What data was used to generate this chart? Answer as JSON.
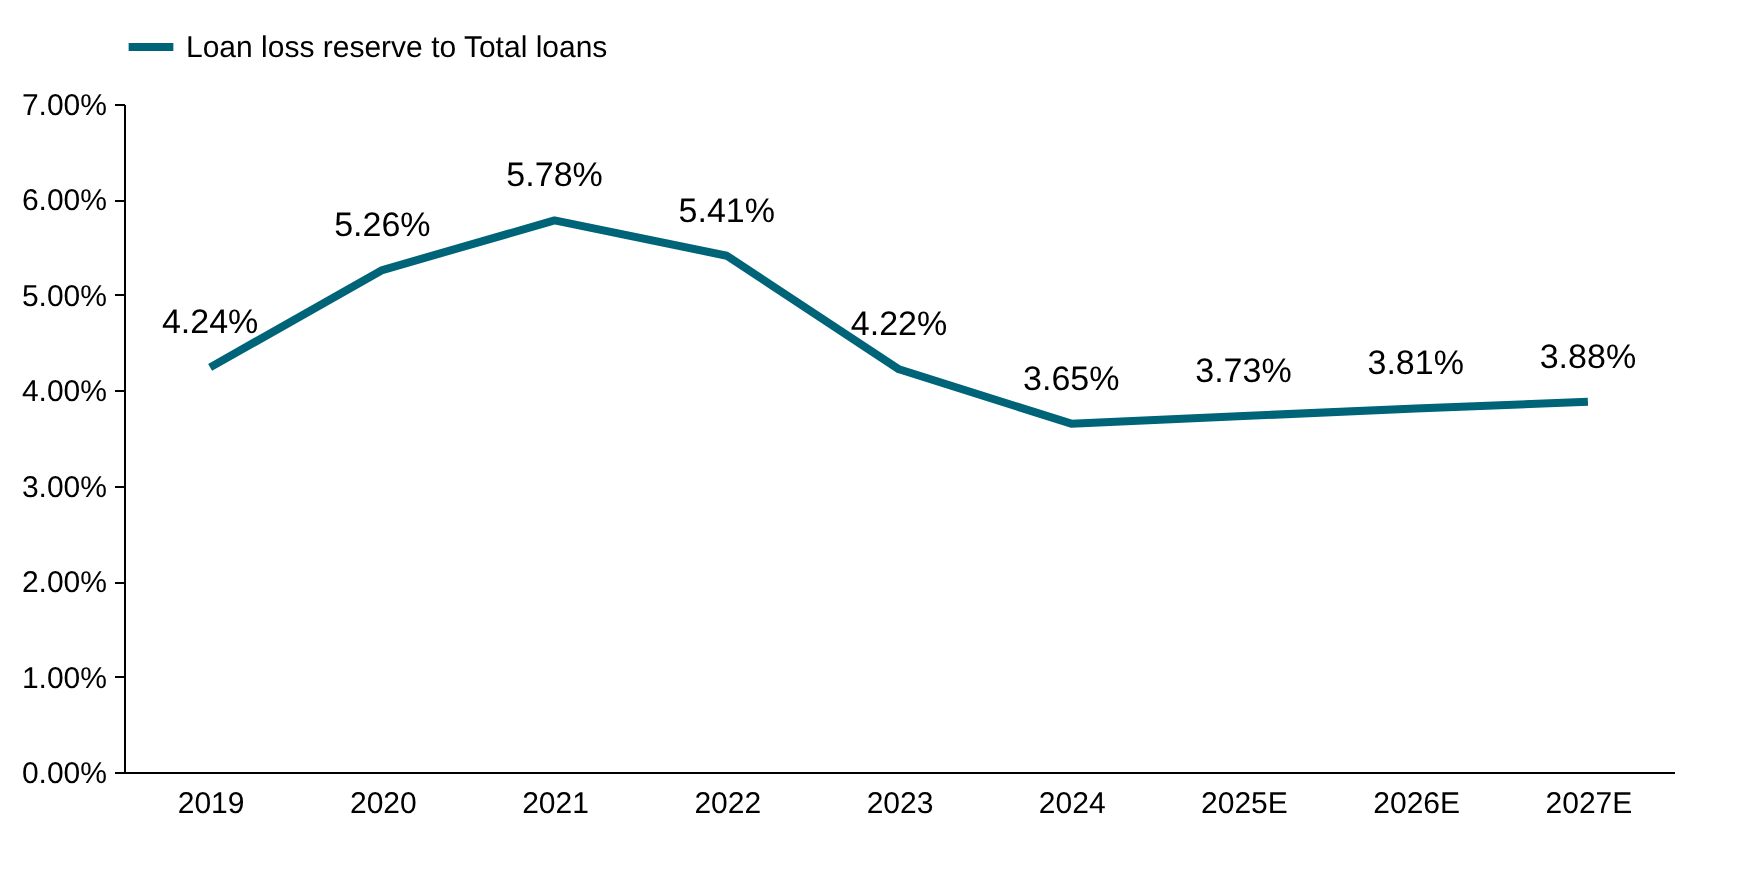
{
  "chart_data": {
    "type": "line",
    "categories": [
      "2019",
      "2020",
      "2021",
      "2022",
      "2023",
      "2024",
      "2025E",
      "2026E",
      "2027E"
    ],
    "series": [
      {
        "name": "Loan loss reserve to Total loans",
        "color": "#006478",
        "values": [
          4.24,
          5.26,
          5.78,
          5.41,
          4.22,
          3.65,
          3.73,
          3.81,
          3.88
        ],
        "value_labels": [
          "4.24%",
          "5.26%",
          "5.78%",
          "5.41%",
          "4.22%",
          "3.65%",
          "3.73%",
          "3.81%",
          "3.88%"
        ]
      }
    ],
    "ylim": [
      0,
      7
    ],
    "yticks": [
      {
        "value": 0,
        "label": "0.00%"
      },
      {
        "value": 1,
        "label": "1.00%"
      },
      {
        "value": 2,
        "label": "2.00%"
      },
      {
        "value": 3,
        "label": "3.00%"
      },
      {
        "value": 4,
        "label": "4.00%"
      },
      {
        "value": 5,
        "label": "5.00%"
      },
      {
        "value": 6,
        "label": "6.00%"
      },
      {
        "value": 7,
        "label": "7.00%"
      }
    ],
    "legend": "top",
    "grid": false,
    "marker": "none",
    "line_style": "solid"
  }
}
